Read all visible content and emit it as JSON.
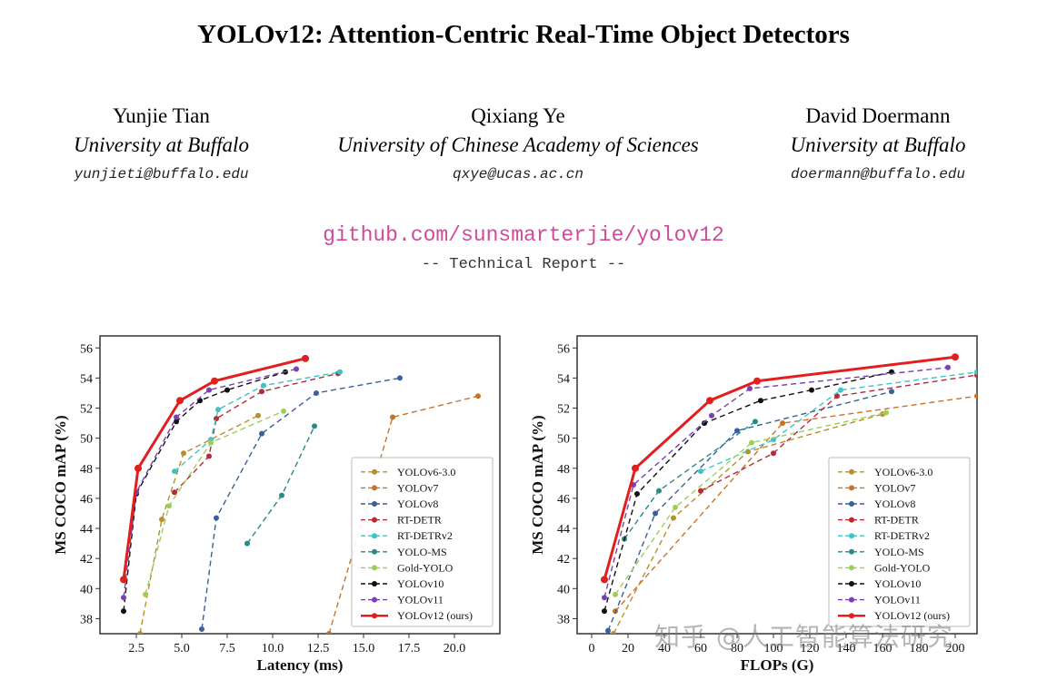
{
  "paper": {
    "title": "YOLOv12: Attention-Centric Real-Time Object Detectors",
    "authors": [
      {
        "name": "Yunjie Tian",
        "affiliation": "University at Buffalo",
        "email": "yunjieti@buffalo.edu"
      },
      {
        "name": "Qixiang Ye",
        "affiliation": "University of Chinese Academy of Sciences",
        "email": "qxye@ucas.ac.cn"
      },
      {
        "name": "David Doermann",
        "affiliation": "University at Buffalo",
        "email": "doermann@buffalo.edu"
      }
    ],
    "github": "github.com/sunsmarterjie/yolov12",
    "report_label": "-- Technical Report --"
  },
  "watermark": "知乎 @人工智能算法研究",
  "chart_data": [
    {
      "type": "line",
      "title": "",
      "xlabel": "Latency (ms)",
      "ylabel": "MS COCO mAP (%)",
      "xlim": [
        0.5,
        22.5
      ],
      "ylim": [
        37,
        56.8
      ],
      "xticks": [
        2.5,
        5.0,
        7.5,
        10.0,
        12.5,
        15.0,
        17.5,
        20.0
      ],
      "xtick_labels": [
        "2.5",
        "5.0",
        "7.5",
        "10.0",
        "12.5",
        "15.0",
        "17.5",
        "20.0"
      ],
      "yticks": [
        38,
        40,
        42,
        44,
        46,
        48,
        50,
        52,
        54,
        56
      ],
      "legend_position": "bottom-right",
      "series": [
        {
          "name": "YOLOv6-3.0",
          "color": "#b8902a",
          "dashed": true,
          "x": [
            2.7,
            3.9,
            5.1,
            9.2
          ],
          "y": [
            37.0,
            44.6,
            49.0,
            51.5
          ]
        },
        {
          "name": "YOLOv7",
          "color": "#c8722a",
          "dashed": true,
          "x": [
            13.1,
            16.6,
            21.3
          ],
          "y": [
            37.0,
            51.4,
            52.8
          ]
        },
        {
          "name": "YOLOv8",
          "color": "#3a5f9e",
          "dashed": true,
          "x": [
            6.1,
            6.9,
            9.4,
            12.4,
            17.0
          ],
          "y": [
            37.3,
            44.7,
            50.3,
            53.0,
            54.0
          ]
        },
        {
          "name": "RT-DETR",
          "color": "#b52a36",
          "dashed": true,
          "x": [
            4.6,
            6.5,
            6.9,
            9.4,
            13.6
          ],
          "y": [
            46.4,
            48.8,
            51.3,
            53.1,
            54.3
          ]
        },
        {
          "name": "RT-DETRv2",
          "color": "#3ec4c4",
          "dashed": true,
          "x": [
            4.6,
            6.6,
            7.0,
            9.5,
            13.7
          ],
          "y": [
            47.8,
            49.9,
            51.9,
            53.5,
            54.4
          ]
        },
        {
          "name": "YOLO-MS",
          "color": "#2a8a8a",
          "dashed": true,
          "x": [
            8.6,
            10.5,
            12.3
          ],
          "y": [
            43.0,
            46.2,
            50.8
          ]
        },
        {
          "name": "Gold-YOLO",
          "color": "#9bcf58",
          "dashed": true,
          "x": [
            3.0,
            4.3,
            6.6,
            10.6
          ],
          "y": [
            39.6,
            45.5,
            49.7,
            51.8
          ]
        },
        {
          "name": "YOLOv10",
          "color": "#111111",
          "dashed": true,
          "x": [
            1.8,
            2.5,
            4.7,
            6.0,
            7.5,
            10.7
          ],
          "y": [
            38.5,
            46.3,
            51.1,
            52.5,
            53.2,
            54.4
          ]
        },
        {
          "name": "YOLOv11",
          "color": "#7a3fb0",
          "dashed": true,
          "x": [
            1.8,
            2.5,
            4.7,
            6.5,
            11.3
          ],
          "y": [
            39.4,
            46.4,
            51.4,
            53.2,
            54.6
          ]
        },
        {
          "name": "YOLOv12 (ours)",
          "color": "#e21f1f",
          "dashed": false,
          "x": [
            1.8,
            2.6,
            4.9,
            6.8,
            11.8
          ],
          "y": [
            40.6,
            48.0,
            52.5,
            53.8,
            55.3
          ]
        }
      ]
    },
    {
      "type": "line",
      "title": "",
      "xlabel": "FLOPs (G)",
      "ylabel": "MS COCO mAP (%)",
      "xlim": [
        -8,
        212
      ],
      "ylim": [
        37,
        56.8
      ],
      "xticks": [
        0,
        20,
        40,
        60,
        80,
        100,
        120,
        140,
        160,
        180,
        200
      ],
      "xtick_labels": [
        "0",
        "20",
        "40",
        "60",
        "80",
        "100",
        "120",
        "140",
        "160",
        "180",
        "200"
      ],
      "yticks": [
        38,
        40,
        42,
        44,
        46,
        48,
        50,
        52,
        54,
        56
      ],
      "legend_position": "bottom-right",
      "series": [
        {
          "name": "YOLOv6-3.0",
          "color": "#b8902a",
          "dashed": true,
          "x": [
            12,
            45,
            86,
            160
          ],
          "y": [
            37.0,
            44.7,
            49.1,
            51.6
          ]
        },
        {
          "name": "YOLOv7",
          "color": "#c8722a",
          "dashed": true,
          "x": [
            13,
            105,
            212
          ],
          "y": [
            38.5,
            51.0,
            52.8
          ]
        },
        {
          "name": "YOLOv8",
          "color": "#3a5f9e",
          "dashed": true,
          "x": [
            9,
            35,
            80,
            165
          ],
          "y": [
            37.2,
            45.0,
            50.5,
            53.1
          ]
        },
        {
          "name": "RT-DETR",
          "color": "#b52a36",
          "dashed": true,
          "x": [
            60,
            100,
            135,
            212
          ],
          "y": [
            46.5,
            49.0,
            52.8,
            54.2
          ]
        },
        {
          "name": "RT-DETRv2",
          "color": "#3ec4c4",
          "dashed": true,
          "x": [
            60,
            100,
            137,
            212
          ],
          "y": [
            47.8,
            49.9,
            53.2,
            54.4
          ]
        },
        {
          "name": "YOLO-MS",
          "color": "#2a8a8a",
          "dashed": true,
          "x": [
            18,
            37,
            90
          ],
          "y": [
            43.3,
            46.5,
            51.1
          ]
        },
        {
          "name": "Gold-YOLO",
          "color": "#9bcf58",
          "dashed": true,
          "x": [
            13,
            46,
            88,
            162
          ],
          "y": [
            39.6,
            45.4,
            49.7,
            51.7
          ]
        },
        {
          "name": "YOLOv10",
          "color": "#111111",
          "dashed": true,
          "x": [
            7,
            25,
            62,
            93,
            121,
            165
          ],
          "y": [
            38.5,
            46.3,
            51.0,
            52.5,
            53.2,
            54.4
          ]
        },
        {
          "name": "YOLOv11",
          "color": "#7a3fb0",
          "dashed": true,
          "x": [
            7,
            23,
            66,
            87,
            196
          ],
          "y": [
            39.4,
            46.9,
            51.5,
            53.3,
            54.7
          ]
        },
        {
          "name": "YOLOv12 (ours)",
          "color": "#e21f1f",
          "dashed": false,
          "x": [
            7,
            24,
            65,
            91,
            200
          ],
          "y": [
            40.6,
            48.0,
            52.5,
            53.8,
            55.4
          ]
        }
      ]
    }
  ]
}
